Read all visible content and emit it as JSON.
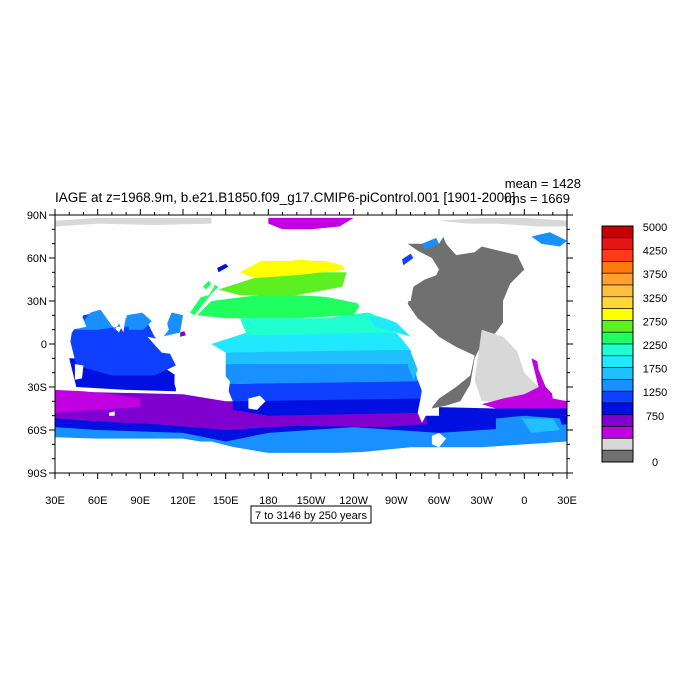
{
  "title": "IAGE at z=1968.9m, b.e21.B1850.f09_g17.CMIP6-piControl.001 [1901-2000]",
  "stats": {
    "mean": "mean = 1428",
    "rms": "rms = 1669"
  },
  "contour_note": "7 to 3146 by 250 years",
  "lat_labels": [
    "90N",
    "60N",
    "30N",
    "0",
    "30S",
    "60S",
    "90S"
  ],
  "lon_labels": [
    "30E",
    "60E",
    "90E",
    "120E",
    "150E",
    "180",
    "150W",
    "120W",
    "90W",
    "60W",
    "30W",
    "0",
    "30E"
  ],
  "colorbar": {
    "labels": [
      "5000",
      "4250",
      "3750",
      "3250",
      "2750",
      "2250",
      "1750",
      "1250",
      "750",
      "0"
    ],
    "colors": [
      "#c40000",
      "#e31515",
      "#ff3a1a",
      "#ff7b10",
      "#ffa030",
      "#ffc040",
      "#ffd838",
      "#ffff00",
      "#5cf020",
      "#20ff60",
      "#20ffd0",
      "#20e8ff",
      "#20c0ff",
      "#1890ff",
      "#1040ff",
      "#0010e0",
      "#8000d0",
      "#c000e0",
      "#d8d8d8",
      "#707070"
    ]
  },
  "map": {
    "lon_range": [
      30,
      390
    ],
    "lat_range": [
      -90,
      90
    ],
    "band_colors": {
      "land": "#ffffff",
      "ice": "#d8d8d8",
      "lt500": "#707070",
      "c750": "#c000e0",
      "c1000": "#8000d0",
      "c1250": "#0010e0",
      "c1500": "#1040ff",
      "c1750": "#1890ff",
      "c2000": "#20c0ff",
      "c2250": "#20e8ff",
      "c2500": "#20ffd0",
      "c2750": "#20ff60",
      "c3000": "#5cf020",
      "c3250": "#ffff00"
    }
  }
}
